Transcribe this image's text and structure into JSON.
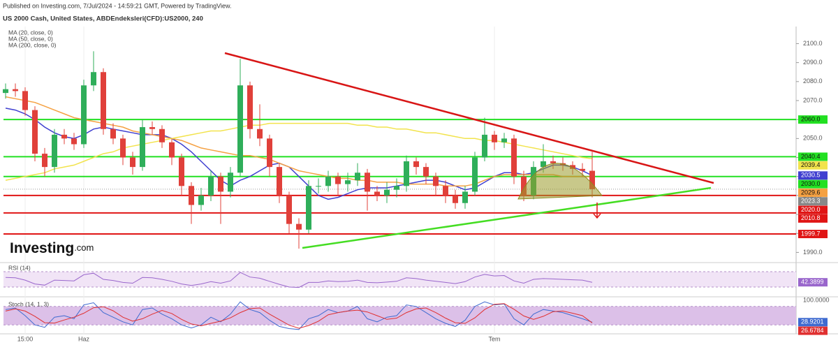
{
  "published": "Published on Investing.com, 7/Jul/2024 - 14:59:21 GMT, Powered by TradingView.",
  "logo": [
    "Investing",
    ".com"
  ],
  "chart_data": [
    {
      "type": "candlestick",
      "title": "US 2000 Cash, United States, ABDEndeksleri(CFD):US2000, 240",
      "categories": [
        null,
        null,
        "15:00",
        null,
        null,
        null,
        null,
        null,
        "Haz",
        null,
        null,
        null,
        null,
        null,
        null,
        null,
        null,
        null,
        null,
        null,
        null,
        null,
        null,
        null,
        null,
        null,
        null,
        null,
        null,
        null,
        null,
        null,
        null,
        null,
        null,
        null,
        null,
        null,
        null,
        null,
        null,
        null,
        null,
        null,
        null,
        null,
        null,
        null,
        null,
        null,
        "Tem",
        null,
        null,
        null,
        null,
        null,
        null,
        null,
        null,
        null,
        null
      ],
      "open": [
        2074,
        2076,
        2075,
        2065,
        2042,
        2035,
        2052,
        2050,
        2047,
        2078,
        2085,
        2055,
        2050,
        2040,
        2035,
        2056,
        2055,
        2048,
        2040,
        2025,
        2015,
        2020,
        2030,
        2022,
        2032,
        2078,
        2055,
        2050,
        2035,
        2020,
        2005,
        2002,
        2025,
        2025,
        2030,
        2026,
        2028,
        2032,
        2022,
        2020,
        2023,
        2025,
        2038,
        2035,
        2030,
        2025,
        2020,
        2016,
        2022,
        2040,
        2052,
        2048,
        2050,
        2030,
        2020,
        2035,
        2038,
        2037,
        2036,
        2034,
        2033
      ],
      "high": [
        2079,
        2079,
        2077,
        2067,
        2045,
        2055,
        2055,
        2053,
        2081,
        2096,
        2087,
        2058,
        2052,
        2043,
        2060,
        2059,
        2057,
        2050,
        2042,
        2027,
        2024,
        2033,
        2032,
        2035,
        2092,
        2080,
        2068,
        2052,
        2037,
        2022,
        2008,
        2028,
        2029,
        2033,
        2032,
        2032,
        2037,
        2034,
        2025,
        2027,
        2029,
        2041,
        2040,
        2037,
        2032,
        2028,
        2023,
        2025,
        2043,
        2061,
        2054,
        2053,
        2052,
        2033,
        2038,
        2047,
        2041,
        2040,
        2038,
        2037,
        2043
      ],
      "low": [
        2071,
        2072,
        2062,
        2038,
        2030,
        2032,
        2047,
        2044,
        2045,
        2075,
        2052,
        2047,
        2036,
        2031,
        2033,
        2052,
        2045,
        2036,
        2020,
        2005,
        2012,
        2017,
        2005,
        2019,
        2030,
        2050,
        2046,
        2030,
        2016,
        2000,
        1992,
        2000,
        2021,
        2022,
        2020,
        2022,
        2025,
        2012,
        2017,
        2016,
        2019,
        2022,
        2031,
        2026,
        2020,
        2016,
        2013,
        2013,
        2020,
        2038,
        2044,
        2045,
        2026,
        2017,
        2018,
        2032,
        2034,
        2033,
        2031,
        2030,
        2019
      ],
      "close": [
        2076,
        2075,
        2065,
        2042,
        2035,
        2052,
        2050,
        2047,
        2078,
        2085,
        2055,
        2050,
        2040,
        2035,
        2056,
        2055,
        2048,
        2040,
        2025,
        2015,
        2020,
        2030,
        2022,
        2032,
        2078,
        2055,
        2050,
        2035,
        2020,
        2005,
        2002,
        2025,
        2025,
        2030,
        2026,
        2028,
        2032,
        2022,
        2020,
        2023,
        2025,
        2038,
        2035,
        2030,
        2025,
        2020,
        2016,
        2022,
        2040,
        2052,
        2048,
        2050,
        2030,
        2020,
        2035,
        2038,
        2037,
        2036,
        2034,
        2033,
        2023.3
      ],
      "up_color": "#2fae5a",
      "down_color": "#e0403a",
      "series": [
        {
          "name": "MA (20, close, 0)",
          "color": "#3f3fd0",
          "values": [
            2066,
            2065,
            2063,
            2060,
            2056,
            2053,
            2051,
            2050,
            2052,
            2055,
            2056,
            2055,
            2054,
            2053,
            2052,
            2052,
            2052,
            2050,
            2047,
            2043,
            2038,
            2033,
            2028,
            2025,
            2028,
            2030,
            2033,
            2036,
            2037,
            2035,
            2030,
            2025,
            2020,
            2018,
            2019,
            2021,
            2023,
            2024,
            2024,
            2024,
            2025,
            2026,
            2027,
            2028,
            2028,
            2027,
            2025,
            2023,
            2024,
            2027,
            2030,
            2032,
            2032,
            2031,
            2032,
            2034,
            2036,
            2036,
            2035,
            2033,
            2030.5
          ]
        },
        {
          "name": "MA (50, close, 0)",
          "color": "#f5a142",
          "values": [
            2072,
            2071,
            2070,
            2069,
            2067,
            2065,
            2063,
            2061,
            2060,
            2059,
            2058,
            2057,
            2056,
            2054,
            2053,
            2052,
            2051,
            2050,
            2049,
            2047,
            2045,
            2044,
            2043,
            2042,
            2041,
            2041,
            2040,
            2039,
            2037,
            2035,
            2033,
            2032,
            2031,
            2030,
            2029,
            2029,
            2028,
            2028,
            2027,
            2027,
            2027,
            2026,
            2026,
            2026,
            2026,
            2025,
            2025,
            2025,
            2026,
            2028,
            2030,
            2031,
            2031,
            2031,
            2031,
            2031,
            2031,
            2030,
            2030,
            2030,
            2029.6
          ]
        },
        {
          "name": "MA (200, close, 0)",
          "color": "#f2e34c",
          "values": [
            2028,
            2029,
            2030,
            2031,
            2032,
            2034,
            2035,
            2036,
            2038,
            2040,
            2042,
            2043,
            2045,
            2046,
            2047,
            2048,
            2049,
            2050,
            2051,
            2052,
            2053,
            2054,
            2054,
            2055,
            2056,
            2057,
            2057,
            2058,
            2058,
            2058,
            2058,
            2058,
            2058,
            2058,
            2058,
            2058,
            2057,
            2057,
            2056,
            2056,
            2055,
            2055,
            2054,
            2053,
            2053,
            2052,
            2051,
            2050,
            2050,
            2049,
            2049,
            2048,
            2047,
            2046,
            2045,
            2044,
            2043,
            2042,
            2041,
            2040,
            2039.4
          ]
        }
      ],
      "levels": [
        {
          "value": 2060,
          "label": "2060.0",
          "color": "#22e022"
        },
        {
          "value": 2040.4,
          "label": "2040.4",
          "color": "#22e022"
        },
        {
          "value": 2030,
          "label": "2030.0",
          "color": "#22e022"
        },
        {
          "value": 2020,
          "label": "2020.0",
          "color": "#e01515"
        },
        {
          "value": 2010.8,
          "label": "2010.8",
          "color": "#e01515"
        },
        {
          "value": 1999.7,
          "label": "1999.7",
          "color": "#e01515"
        }
      ],
      "ylim": [
        1985,
        2109
      ],
      "yticks": [
        {
          "value": 2100,
          "label": "2100.0"
        },
        {
          "value": 2090,
          "label": "2090.0"
        },
        {
          "value": 2080,
          "label": "2080.0"
        },
        {
          "value": 2070,
          "label": "2070.0"
        },
        {
          "value": 2060,
          "label": "2060.0"
        },
        {
          "value": 2050,
          "label": "2050.0"
        },
        {
          "value": 2040,
          "label": "2040.0"
        },
        {
          "value": 2030,
          "label": "2030.0"
        },
        {
          "value": 2020,
          "label": "2020.0"
        },
        {
          "value": 2010,
          "label": "2010.0"
        },
        {
          "value": 2000,
          "label": "2000.0"
        },
        {
          "value": 1990,
          "label": "1990.0"
        }
      ]
    },
    {
      "type": "line",
      "title": "RSI (14)",
      "ylim": [
        10,
        90
      ],
      "bands": [
        30,
        70
      ],
      "band_color": "#f1e4f6",
      "series": [
        {
          "color": "#9966cc",
          "values": [
            55,
            54,
            48,
            38,
            35,
            48,
            47,
            46,
            62,
            66,
            50,
            47,
            42,
            40,
            55,
            54,
            50,
            45,
            38,
            34,
            38,
            44,
            40,
            46,
            68,
            56,
            53,
            45,
            37,
            30,
            29,
            42,
            42,
            46,
            44,
            45,
            48,
            42,
            41,
            43,
            45,
            54,
            52,
            48,
            45,
            42,
            39,
            44,
            56,
            63,
            59,
            60,
            46,
            40,
            50,
            52,
            51,
            50,
            49,
            48,
            42.3899
          ]
        }
      ]
    },
    {
      "type": "line",
      "title": "Stoch (14, 1, 3)",
      "ylim": [
        0,
        100
      ],
      "bands": [
        20,
        80
      ],
      "band_color": "#dcc0e8",
      "yticks": [
        {
          "value": 100,
          "label": "100.0000"
        }
      ],
      "series": [
        {
          "color": "#3f6bd0",
          "values": [
            70,
            75,
            50,
            20,
            12,
            45,
            50,
            40,
            85,
            92,
            60,
            45,
            30,
            20,
            70,
            75,
            55,
            40,
            20,
            10,
            20,
            45,
            30,
            55,
            95,
            70,
            60,
            35,
            15,
            8,
            5,
            40,
            50,
            70,
            60,
            65,
            80,
            40,
            30,
            45,
            50,
            85,
            80,
            60,
            40,
            25,
            15,
            35,
            80,
            95,
            85,
            88,
            40,
            20,
            55,
            70,
            65,
            60,
            50,
            40,
            28.9201
          ]
        },
        {
          "color": "#e03030",
          "values": [
            65,
            72,
            65,
            48,
            27,
            26,
            36,
            45,
            58,
            76,
            79,
            66,
            45,
            32,
            40,
            55,
            67,
            57,
            38,
            23,
            17,
            25,
            32,
            43,
            60,
            73,
            75,
            55,
            37,
            19,
            9,
            18,
            32,
            53,
            60,
            65,
            68,
            62,
            50,
            38,
            42,
            60,
            72,
            75,
            60,
            42,
            27,
            25,
            43,
            70,
            87,
            89,
            71,
            49,
            38,
            48,
            63,
            65,
            58,
            50,
            26.6784
          ]
        }
      ]
    }
  ]
}
